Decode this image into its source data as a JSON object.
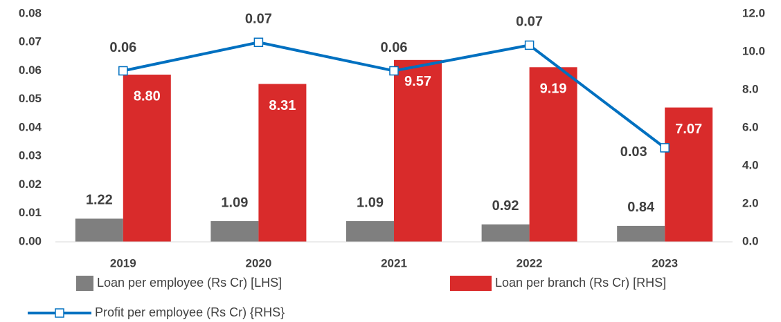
{
  "chart_data": {
    "type": "bar",
    "categories": [
      "2019",
      "2020",
      "2021",
      "2022",
      "2023"
    ],
    "series": [
      {
        "name": "Loan per employee (Rs Cr) [LHS]",
        "type": "bar",
        "color": "#7f7f7f",
        "axis": "y2",
        "values": [
          1.22,
          1.09,
          1.09,
          0.92,
          0.84
        ]
      },
      {
        "name": "Loan per branch (Rs Cr) [RHS]",
        "type": "bar",
        "color": "#d92b2b",
        "axis": "y2",
        "values": [
          8.8,
          8.31,
          9.57,
          9.19,
          7.07
        ],
        "value_labels": [
          "8.80",
          "8.31",
          "9.57",
          "9.19",
          "7.07"
        ]
      },
      {
        "name": "Profit per employee (Rs Cr) {RHS}",
        "type": "line",
        "color": "#0070c0",
        "values": [
          0.06,
          0.07,
          0.06,
          0.069,
          0.033
        ],
        "value_labels": [
          "0.06",
          "0.07",
          "0.06",
          "0.07",
          "0.03"
        ]
      }
    ],
    "ylim": [
      0,
      0.08
    ],
    "yticks": [
      {
        "value": 0,
        "label": "0.00"
      },
      {
        "value": 0.01,
        "label": "0.01"
      },
      {
        "value": 0.02,
        "label": "0.02"
      },
      {
        "value": 0.03,
        "label": "0.03"
      },
      {
        "value": 0.04,
        "label": "0.04"
      },
      {
        "value": 0.05,
        "label": "0.05"
      },
      {
        "value": 0.06,
        "label": "0.06"
      },
      {
        "value": 0.07,
        "label": "0.07"
      },
      {
        "value": 0.08,
        "label": "0.08"
      }
    ],
    "y2lim": [
      0,
      12
    ],
    "y2ticks": [
      {
        "value": 0,
        "label": "0.0"
      },
      {
        "value": 2,
        "label": "2.0"
      },
      {
        "value": 4,
        "label": "4.0"
      },
      {
        "value": 6,
        "label": "6.0"
      },
      {
        "value": 8,
        "label": "8.0"
      },
      {
        "value": 10,
        "label": "10.0"
      },
      {
        "value": 12,
        "label": "12.0"
      }
    ],
    "grid": false
  }
}
